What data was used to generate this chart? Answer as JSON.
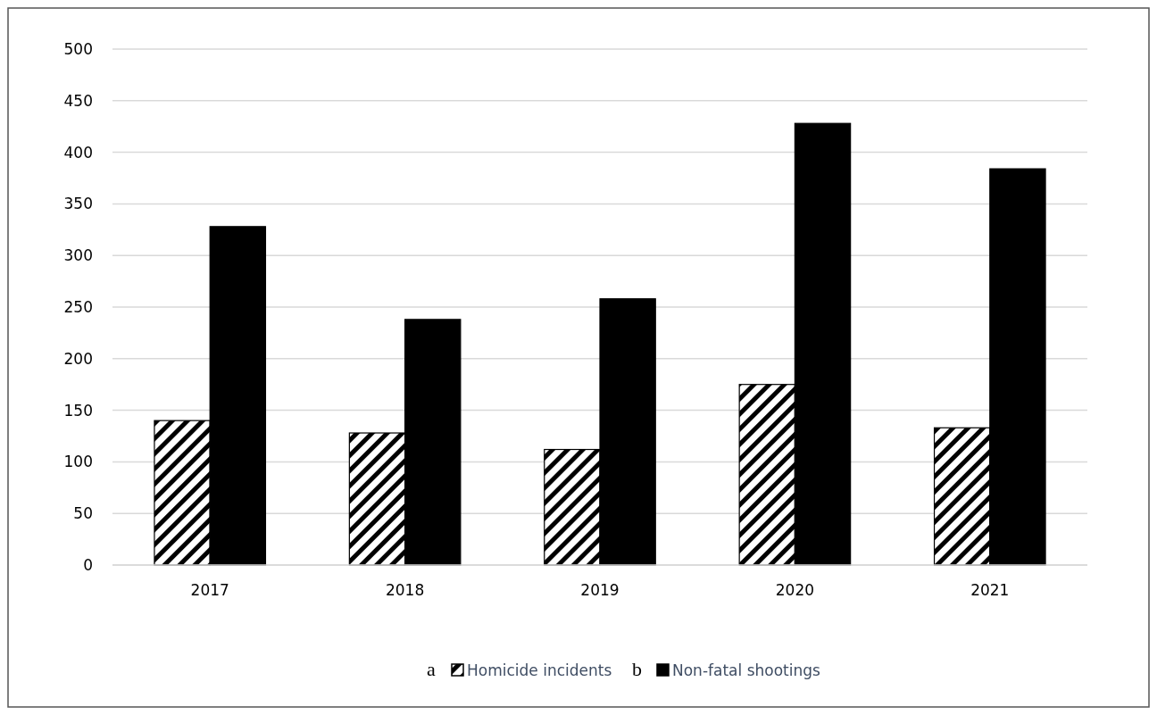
{
  "chart_data": {
    "type": "bar",
    "categories": [
      "2017",
      "2018",
      "2019",
      "2020",
      "2021"
    ],
    "series": [
      {
        "name": "Homicide incidents",
        "color": "#000000",
        "values": [
          140,
          128,
          112,
          175,
          133
        ]
      },
      {
        "name": "Non-fatal shootings",
        "color": "#000000",
        "values": [
          328,
          238,
          258,
          428,
          384
        ]
      }
    ],
    "ylim": [
      0,
      500
    ],
    "yticks": [
      0,
      50,
      100,
      150,
      200,
      250,
      300,
      350,
      400,
      450,
      500
    ],
    "grid": "y",
    "legend": "bottom",
    "annotations": [
      "a",
      "b"
    ]
  }
}
